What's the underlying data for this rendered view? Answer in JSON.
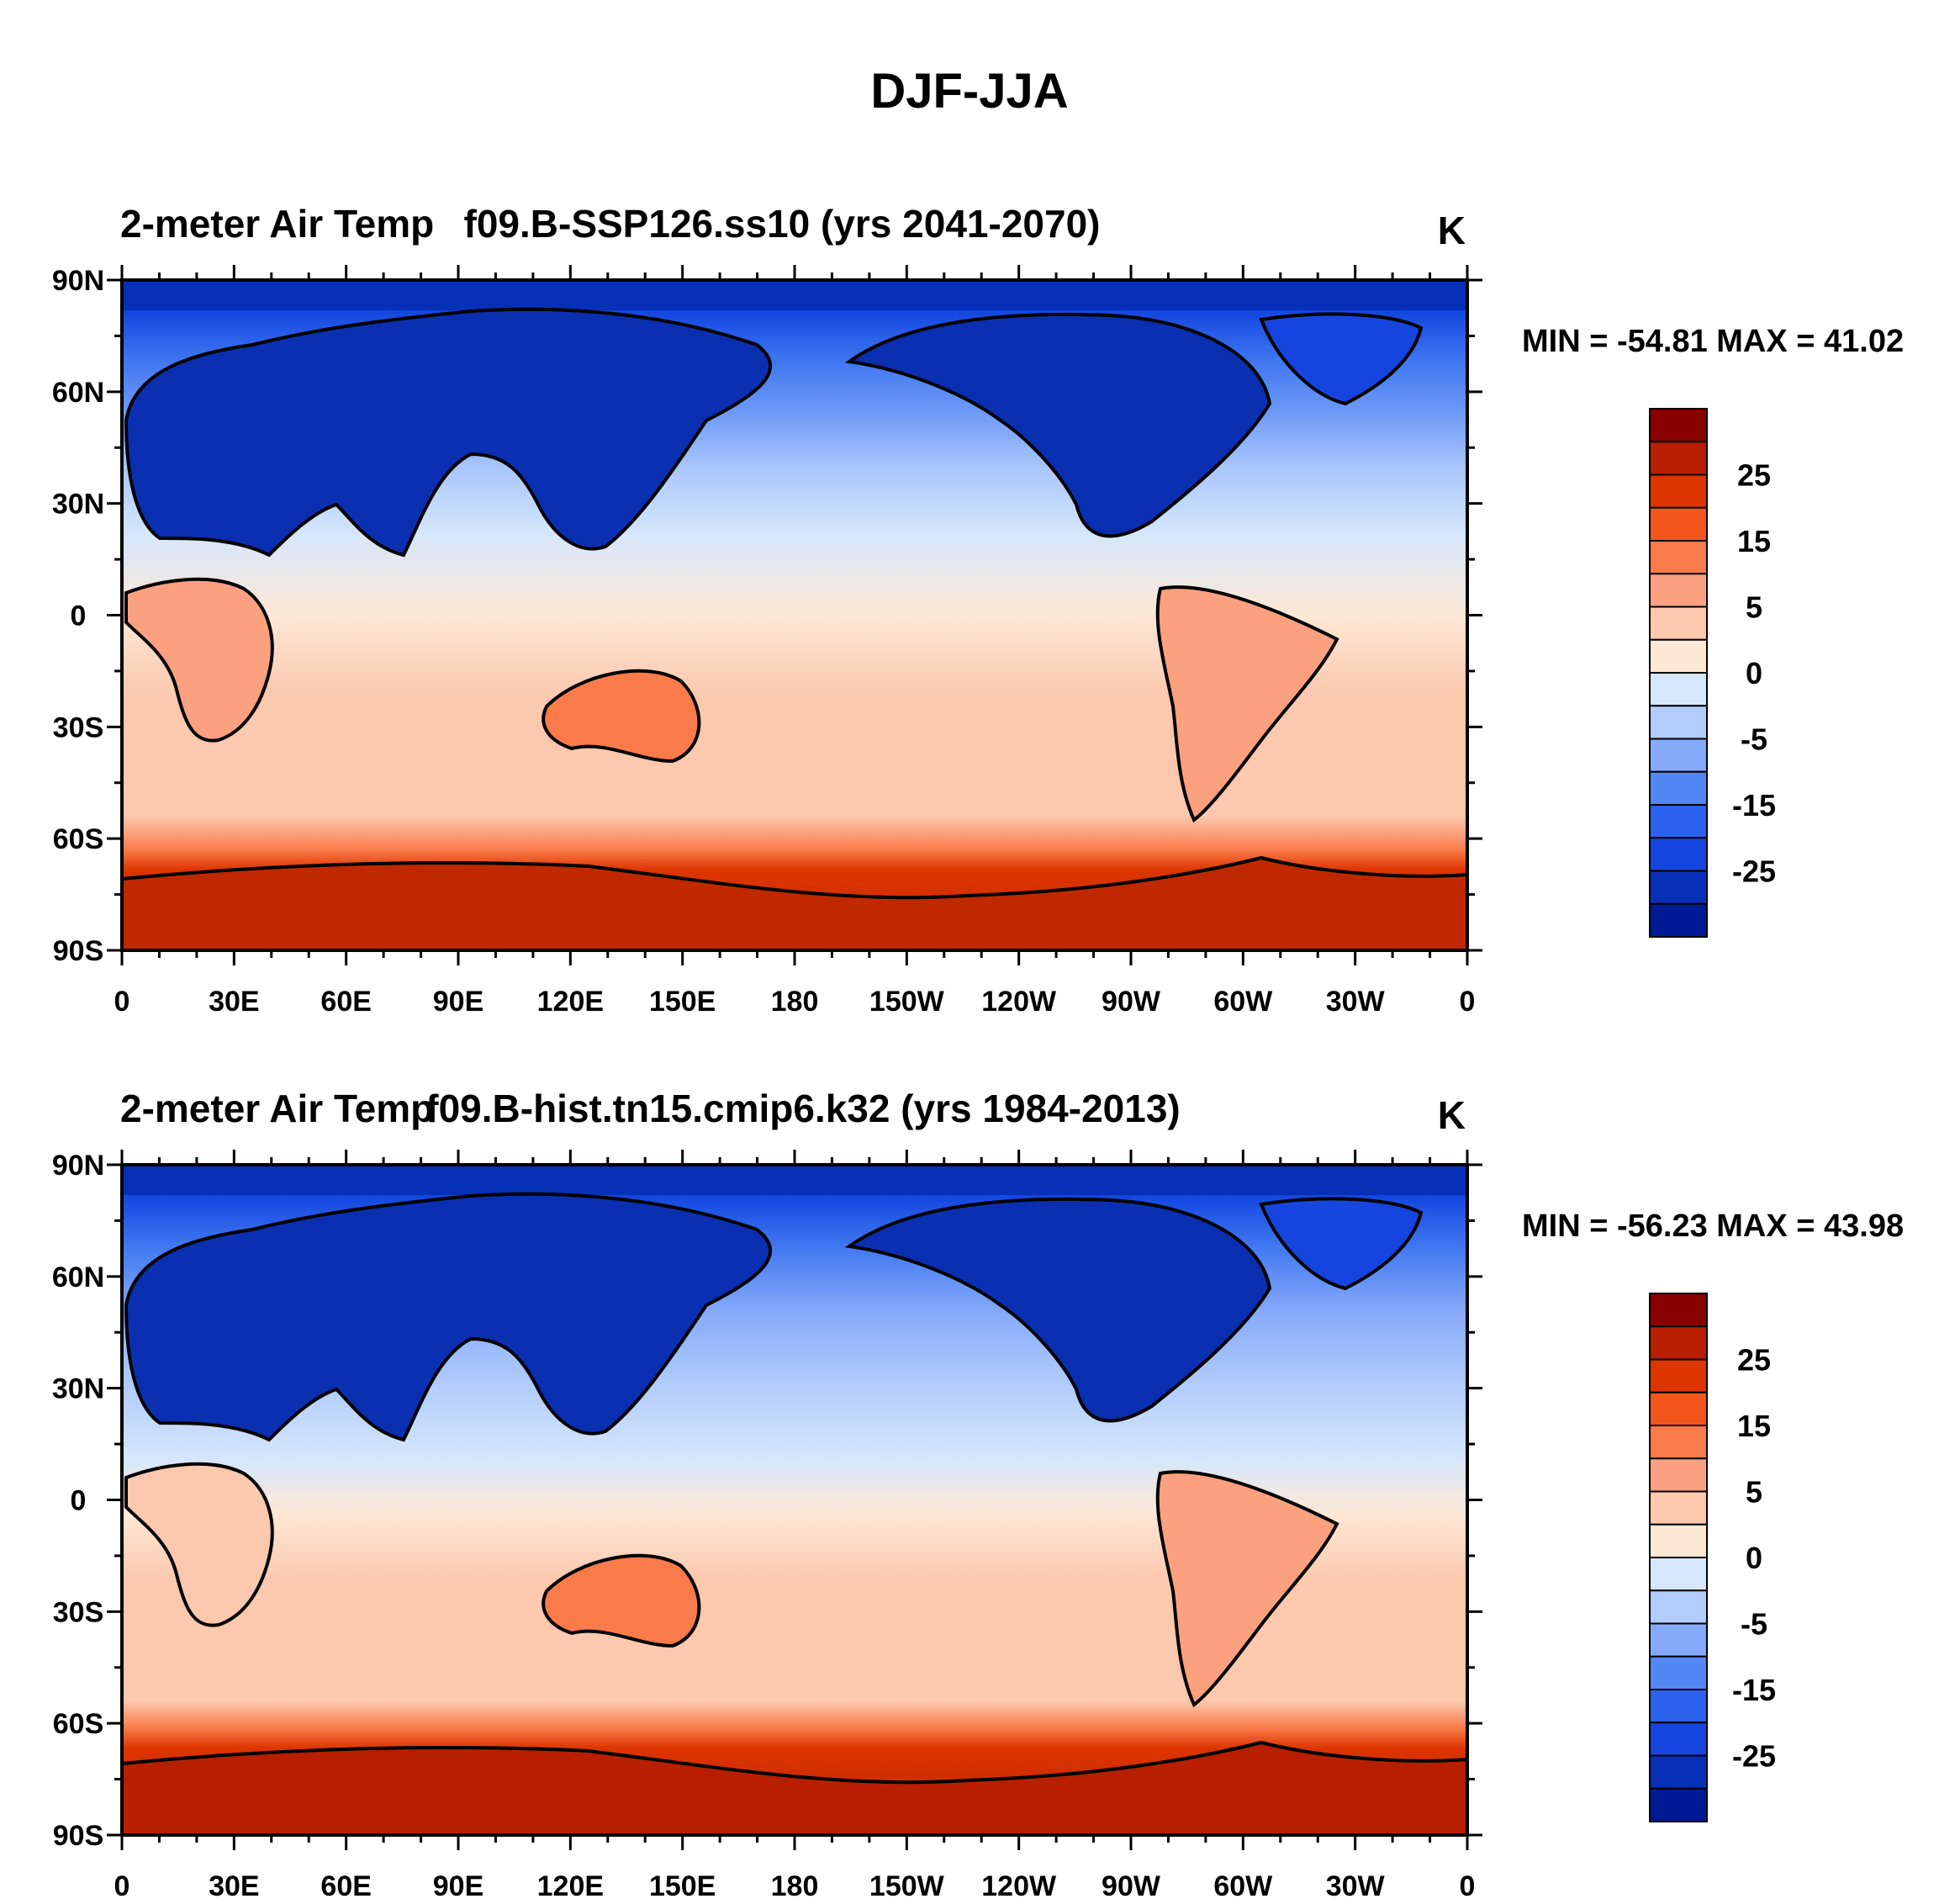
{
  "figure": {
    "title": "DJF-JJA"
  },
  "chart_data": [
    {
      "type": "heatmap",
      "panel": "top",
      "left_string": "2-meter Air Temp",
      "center_string": "f09.B-SSP126.ss10 (yrs 2041-2070)",
      "right_string": "K",
      "stats_label": "MIN = -54.81 MAX =  41.02",
      "min": -54.81,
      "max": 41.02,
      "y_tick_labels": [
        "90N",
        "60N",
        "30N",
        "0",
        "30S",
        "60S",
        "90S"
      ],
      "x_tick_labels": [
        "0",
        "30E",
        "60E",
        "90E",
        "120E",
        "150E",
        "180",
        "150W",
        "120W",
        "90W",
        "60W",
        "30W",
        "0"
      ],
      "colorbar_labels": [
        "25",
        "15",
        "5",
        "0",
        "-5",
        "-15",
        "-25"
      ]
    },
    {
      "type": "heatmap",
      "panel": "bottom",
      "left_string": "2-meter Air Temp",
      "center_string": "f09.B-hist.tn15.cmip6.k32 (yrs 1984-2013)",
      "right_string": "K",
      "stats_label": "MIN = -56.23 MAX =  43.98",
      "min": -56.23,
      "max": 43.98,
      "y_tick_labels": [
        "90N",
        "60N",
        "30N",
        "0",
        "30S",
        "60S",
        "90S"
      ],
      "x_tick_labels": [
        "0",
        "30E",
        "60E",
        "90E",
        "120E",
        "150E",
        "180",
        "150W",
        "120W",
        "90W",
        "60W",
        "30W",
        "0"
      ],
      "colorbar_labels": [
        "25",
        "15",
        "5",
        "0",
        "-5",
        "-15",
        "-25"
      ]
    }
  ],
  "colorbar_colors": [
    "#880000",
    "#b81e00",
    "#dd3500",
    "#f2561d",
    "#fa7b4a",
    "#fba17f",
    "#fcc8ae",
    "#fde8d6",
    "#d6e7fb",
    "#b2ccfb",
    "#86aafa",
    "#5387f5",
    "#2a62ee",
    "#1545de",
    "#0730b9",
    "#001a95"
  ]
}
